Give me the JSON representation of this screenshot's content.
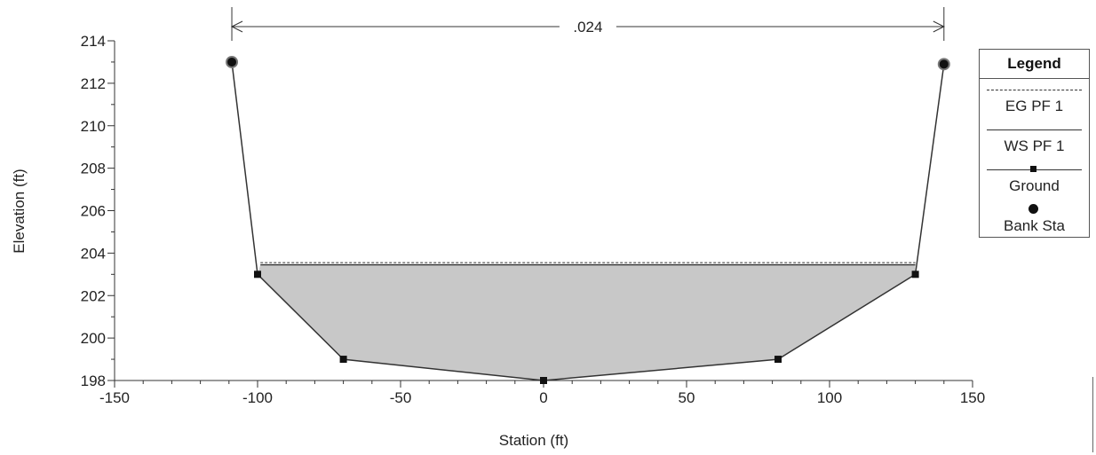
{
  "chart_data": {
    "type": "line",
    "xlabel": "Station (ft)",
    "ylabel": "Elevation (ft)",
    "xlim": [
      -150,
      150
    ],
    "ylim": [
      198,
      214
    ],
    "xticks": [
      -150,
      -100,
      -50,
      0,
      50,
      100,
      150
    ],
    "yticks": [
      198,
      200,
      202,
      204,
      206,
      208,
      210,
      212,
      214
    ],
    "series": [
      {
        "name": "EG PF 1",
        "style": "dashed",
        "x": [
          -99,
          130
        ],
        "y": [
          203.55,
          203.55
        ]
      },
      {
        "name": "WS PF 1",
        "style": "solid",
        "x": [
          -99,
          130
        ],
        "y": [
          203.45,
          203.45
        ]
      },
      {
        "name": "Ground",
        "style": "solid-square-markers",
        "x": [
          -109,
          -100,
          -70,
          0,
          82,
          130,
          140
        ],
        "y": [
          213,
          203,
          199,
          198,
          199,
          203,
          212.9
        ]
      },
      {
        "name": "Bank Sta",
        "style": "circle-markers",
        "x": [
          -109,
          140
        ],
        "y": [
          213,
          212.9
        ]
      }
    ],
    "annotations": [
      {
        "text": ".024",
        "x_from": -109,
        "x_to": 140
      }
    ],
    "legend": {
      "title": "Legend",
      "position": "right",
      "items": [
        "EG PF 1",
        "WS PF 1",
        "Ground",
        "Bank Sta"
      ]
    },
    "colors": {
      "line": "#333333",
      "fill": "#c8c8c8",
      "marker": "#111111"
    }
  }
}
